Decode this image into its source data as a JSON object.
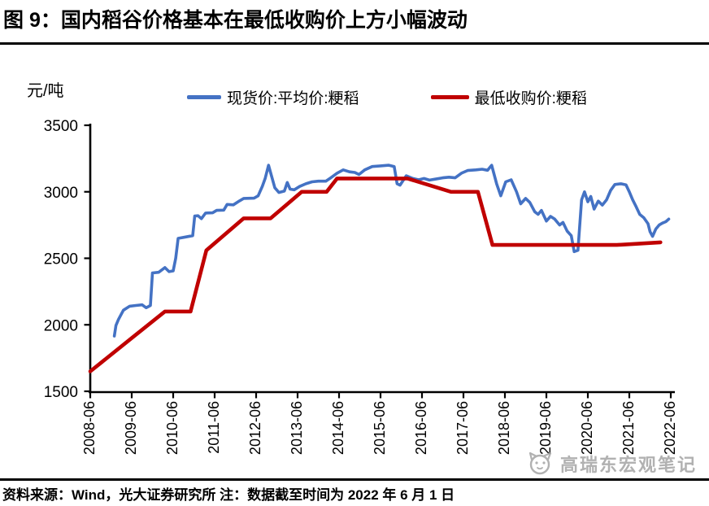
{
  "header": {
    "title": "图 9：国内稻谷价格基本在最低收购价上方小幅波动"
  },
  "chart": {
    "unit_label": "元/吨",
    "legend": [
      {
        "label": "现货价:平均价:粳稻",
        "color": "#4472C4",
        "swatch_width": 42
      },
      {
        "label": "最低收购价:粳稻",
        "color": "#C00000",
        "swatch_width": 47
      }
    ]
  },
  "chart_data": {
    "type": "line",
    "title": "国内稻谷价格基本在最低收购价上方小幅波动",
    "xlabel": "",
    "ylabel": "元/吨",
    "ylim": [
      1500,
      3500
    ],
    "y_ticks": [
      1500,
      2000,
      2500,
      3000,
      3500
    ],
    "x_ticks": [
      {
        "pos": 2008.5,
        "label": "2008-06"
      },
      {
        "pos": 2009.5,
        "label": "2009-06"
      },
      {
        "pos": 2010.5,
        "label": "2010-06"
      },
      {
        "pos": 2011.5,
        "label": "2011-06"
      },
      {
        "pos": 2012.5,
        "label": "2012-06"
      },
      {
        "pos": 2013.5,
        "label": "2013-06"
      },
      {
        "pos": 2014.5,
        "label": "2014-06"
      },
      {
        "pos": 2015.5,
        "label": "2015-06"
      },
      {
        "pos": 2016.5,
        "label": "2016-06"
      },
      {
        "pos": 2017.5,
        "label": "2017-06"
      },
      {
        "pos": 2018.5,
        "label": "2018-06"
      },
      {
        "pos": 2019.5,
        "label": "2019-06"
      },
      {
        "pos": 2020.5,
        "label": "2020-06"
      },
      {
        "pos": 2021.5,
        "label": "2021-06"
      },
      {
        "pos": 2022.5,
        "label": "2022-06"
      }
    ],
    "grid": false,
    "legend_position": "top",
    "series": [
      {
        "name": "现货价:平均价:粳稻",
        "color": "#4472C4",
        "width": 3.6,
        "points": [
          [
            2009.08,
            1915
          ],
          [
            2009.12,
            1995
          ],
          [
            2009.18,
            2040
          ],
          [
            2009.3,
            2110
          ],
          [
            2009.45,
            2140
          ],
          [
            2009.6,
            2145
          ],
          [
            2009.75,
            2150
          ],
          [
            2009.85,
            2128
          ],
          [
            2009.95,
            2145
          ],
          [
            2010.0,
            2390
          ],
          [
            2010.15,
            2395
          ],
          [
            2010.3,
            2430
          ],
          [
            2010.4,
            2400
          ],
          [
            2010.5,
            2405
          ],
          [
            2010.56,
            2500
          ],
          [
            2010.62,
            2650
          ],
          [
            2010.8,
            2660
          ],
          [
            2010.97,
            2670
          ],
          [
            2011.02,
            2818
          ],
          [
            2011.1,
            2820
          ],
          [
            2011.18,
            2798
          ],
          [
            2011.28,
            2840
          ],
          [
            2011.45,
            2842
          ],
          [
            2011.55,
            2860
          ],
          [
            2011.72,
            2862
          ],
          [
            2011.8,
            2905
          ],
          [
            2011.95,
            2902
          ],
          [
            2012.1,
            2932
          ],
          [
            2012.2,
            2950
          ],
          [
            2012.45,
            2952
          ],
          [
            2012.55,
            2970
          ],
          [
            2012.65,
            3042
          ],
          [
            2012.72,
            3102
          ],
          [
            2012.8,
            3200
          ],
          [
            2012.87,
            3120
          ],
          [
            2012.95,
            3030
          ],
          [
            2013.05,
            2995
          ],
          [
            2013.18,
            3005
          ],
          [
            2013.25,
            3070
          ],
          [
            2013.32,
            3020
          ],
          [
            2013.42,
            3015
          ],
          [
            2013.55,
            3040
          ],
          [
            2013.7,
            3060
          ],
          [
            2013.85,
            3075
          ],
          [
            2014.0,
            3080
          ],
          [
            2014.18,
            3080
          ],
          [
            2014.3,
            3105
          ],
          [
            2014.45,
            3140
          ],
          [
            2014.6,
            3165
          ],
          [
            2014.75,
            3150
          ],
          [
            2014.88,
            3145
          ],
          [
            2014.98,
            3130
          ],
          [
            2015.12,
            3165
          ],
          [
            2015.3,
            3190
          ],
          [
            2015.5,
            3195
          ],
          [
            2015.7,
            3200
          ],
          [
            2015.83,
            3190
          ],
          [
            2015.9,
            3060
          ],
          [
            2015.97,
            3050
          ],
          [
            2016.12,
            3120
          ],
          [
            2016.28,
            3100
          ],
          [
            2016.42,
            3090
          ],
          [
            2016.55,
            3100
          ],
          [
            2016.68,
            3088
          ],
          [
            2016.82,
            3095
          ],
          [
            2017.0,
            3105
          ],
          [
            2017.15,
            3110
          ],
          [
            2017.3,
            3105
          ],
          [
            2017.45,
            3140
          ],
          [
            2017.6,
            3160
          ],
          [
            2017.8,
            3165
          ],
          [
            2017.95,
            3170
          ],
          [
            2018.08,
            3162
          ],
          [
            2018.18,
            3200
          ],
          [
            2018.3,
            3060
          ],
          [
            2018.4,
            2970
          ],
          [
            2018.52,
            3075
          ],
          [
            2018.65,
            3090
          ],
          [
            2018.78,
            3000
          ],
          [
            2018.88,
            2910
          ],
          [
            2019.0,
            2950
          ],
          [
            2019.1,
            2920
          ],
          [
            2019.22,
            2850
          ],
          [
            2019.3,
            2830
          ],
          [
            2019.38,
            2860
          ],
          [
            2019.5,
            2780
          ],
          [
            2019.6,
            2815
          ],
          [
            2019.7,
            2795
          ],
          [
            2019.82,
            2750
          ],
          [
            2019.9,
            2770
          ],
          [
            2020.0,
            2705
          ],
          [
            2020.1,
            2670
          ],
          [
            2020.17,
            2550
          ],
          [
            2020.26,
            2560
          ],
          [
            2020.35,
            2940
          ],
          [
            2020.42,
            3000
          ],
          [
            2020.5,
            2925
          ],
          [
            2020.57,
            2965
          ],
          [
            2020.65,
            2870
          ],
          [
            2020.75,
            2930
          ],
          [
            2020.85,
            2900
          ],
          [
            2020.95,
            2940
          ],
          [
            2021.05,
            3010
          ],
          [
            2021.15,
            3055
          ],
          [
            2021.3,
            3060
          ],
          [
            2021.42,
            3052
          ],
          [
            2021.5,
            3000
          ],
          [
            2021.58,
            2940
          ],
          [
            2021.66,
            2890
          ],
          [
            2021.75,
            2830
          ],
          [
            2021.85,
            2805
          ],
          [
            2021.95,
            2760
          ],
          [
            2022.0,
            2700
          ],
          [
            2022.06,
            2665
          ],
          [
            2022.14,
            2720
          ],
          [
            2022.22,
            2750
          ],
          [
            2022.3,
            2765
          ],
          [
            2022.38,
            2775
          ],
          [
            2022.45,
            2795
          ]
        ]
      },
      {
        "name": "最低收购价:粳稻",
        "color": "#C00000",
        "width": 4.6,
        "points": [
          [
            2008.5,
            1650
          ],
          [
            2009.5,
            1900
          ],
          [
            2010.3,
            2100
          ],
          [
            2010.92,
            2100
          ],
          [
            2011.3,
            2560
          ],
          [
            2012.2,
            2800
          ],
          [
            2012.85,
            2800
          ],
          [
            2013.6,
            3000
          ],
          [
            2014.2,
            3000
          ],
          [
            2014.45,
            3100
          ],
          [
            2016.15,
            3100
          ],
          [
            2017.2,
            3000
          ],
          [
            2017.85,
            3000
          ],
          [
            2018.2,
            2600
          ],
          [
            2021.2,
            2600
          ],
          [
            2022.25,
            2620
          ]
        ]
      }
    ]
  },
  "watermark": {
    "text": "高瑞东宏观笔记"
  },
  "footer": {
    "source": "资料来源：Wind，光大证券研究所 注：数据截至时间为 2022 年 6 月 1 日"
  }
}
